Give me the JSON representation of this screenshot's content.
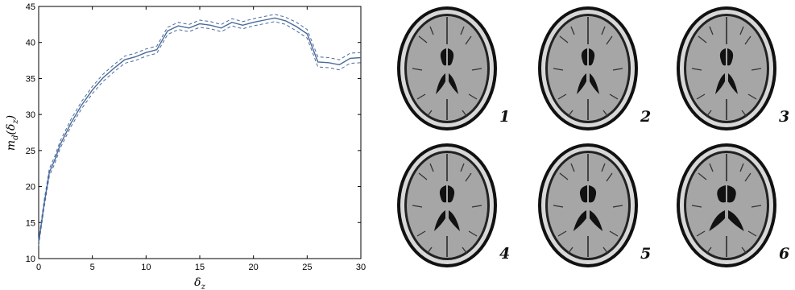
{
  "chart_data": {
    "type": "line",
    "xlabel": "δz",
    "ylabel": "md(δz)",
    "xlim": [
      0,
      30
    ],
    "ylim": [
      10,
      45
    ],
    "xticks": [
      0,
      5,
      10,
      15,
      20,
      25,
      30
    ],
    "yticks": [
      10,
      15,
      20,
      25,
      30,
      35,
      40,
      45
    ],
    "grid": false,
    "series": [
      {
        "style": "solid",
        "color": "#4a6a9a",
        "x": [
          0,
          0.5,
          1,
          1.5,
          2,
          3,
          4,
          5,
          6,
          7,
          8,
          9,
          10,
          11,
          12,
          13,
          14,
          15,
          16,
          17,
          18,
          19,
          20,
          21,
          22,
          23,
          24,
          25,
          26,
          27,
          28,
          29,
          30
        ],
        "y": [
          12.2,
          17.5,
          22.0,
          23.7,
          25.8,
          28.8,
          31.3,
          33.4,
          35.1,
          36.4,
          37.6,
          38.0,
          38.6,
          39.0,
          41.6,
          42.3,
          42.0,
          42.6,
          42.4,
          42.0,
          42.8,
          42.4,
          42.8,
          43.1,
          43.4,
          43.0,
          42.2,
          41.2,
          37.3,
          37.2,
          36.9,
          37.8,
          37.9
        ]
      },
      {
        "style": "dashed",
        "color": "#4a6a9a",
        "x": [
          0,
          0.5,
          1,
          1.5,
          2,
          3,
          4,
          5,
          6,
          7,
          8,
          9,
          10,
          11,
          12,
          13,
          14,
          15,
          16,
          17,
          18,
          19,
          20,
          21,
          22,
          23,
          24,
          25,
          26,
          27,
          28,
          29,
          30
        ],
        "y": [
          12.6,
          18.0,
          22.5,
          24.2,
          26.3,
          29.3,
          31.8,
          33.9,
          35.6,
          36.9,
          38.1,
          38.5,
          39.1,
          39.5,
          42.1,
          42.8,
          42.5,
          43.1,
          42.9,
          42.5,
          43.3,
          42.9,
          43.3,
          43.6,
          43.9,
          43.5,
          42.8,
          41.8,
          38.0,
          37.9,
          37.6,
          38.5,
          38.6
        ]
      },
      {
        "style": "dashed",
        "color": "#4a6a9a",
        "x": [
          0,
          0.5,
          1,
          1.5,
          2,
          3,
          4,
          5,
          6,
          7,
          8,
          9,
          10,
          11,
          12,
          13,
          14,
          15,
          16,
          17,
          18,
          19,
          20,
          21,
          22,
          23,
          24,
          25,
          26,
          27,
          28,
          29,
          30
        ],
        "y": [
          11.8,
          17.0,
          21.5,
          23.2,
          25.3,
          28.3,
          30.8,
          32.9,
          34.6,
          35.9,
          37.1,
          37.5,
          38.1,
          38.5,
          41.1,
          41.8,
          41.5,
          42.1,
          41.9,
          41.5,
          42.3,
          41.9,
          42.3,
          42.6,
          42.9,
          42.5,
          41.6,
          40.6,
          36.6,
          36.5,
          36.2,
          37.1,
          37.2
        ]
      }
    ]
  },
  "panel_labels": [
    "1",
    "2",
    "3",
    "4",
    "5",
    "6"
  ],
  "colors": {
    "line": "#4a6a9a",
    "brain_tissue": "#a6a6a6",
    "skull": "#d8d8d8"
  }
}
